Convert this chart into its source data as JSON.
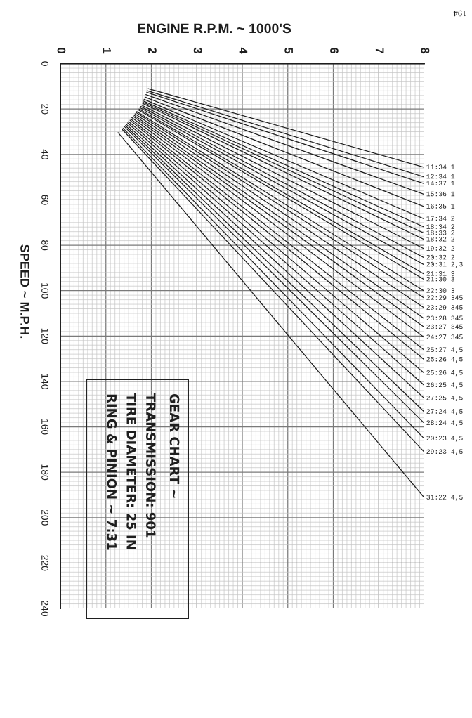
{
  "chart_data": {
    "type": "line",
    "title": "GEAR CHART ~",
    "subtitle": "TRANSMISSION: 901\nTIRE DIAMETER: 25 IN\nRING & PINION ~ 7:31",
    "xlabel": "ENGINE R.P.M. ~ 1000'S",
    "ylabel": "SPEED ~ M.P.H.",
    "annotations": [
      "194"
    ],
    "xlim": [
      0,
      8
    ],
    "ylim": [
      240,
      0
    ],
    "xticks": [
      0,
      1,
      2,
      3,
      4,
      5,
      6,
      7,
      8
    ],
    "yticks": [
      0,
      20,
      40,
      60,
      80,
      100,
      120,
      140,
      160,
      180,
      200,
      220,
      240
    ],
    "grid": true,
    "series": [
      {
        "name": "11:34 1",
        "color": "#1e1e1e",
        "x": [
          1.93,
          8
        ],
        "values": [
          11.0,
          45.7
        ]
      },
      {
        "name": "12:34 1",
        "color": "#1e1e1e",
        "x": [
          1.91,
          8
        ],
        "values": [
          11.9,
          49.9
        ]
      },
      {
        "name": "14:37 1",
        "color": "#1e1e1e",
        "x": [
          1.9,
          8
        ],
        "values": [
          12.6,
          52.9
        ]
      },
      {
        "name": "15:36 1",
        "color": "#1e1e1e",
        "x": [
          1.88,
          8
        ],
        "values": [
          13.6,
          57.6
        ]
      },
      {
        "name": "16:35 1",
        "color": "#1e1e1e",
        "x": [
          1.86,
          8
        ],
        "values": [
          14.7,
          63.0
        ]
      },
      {
        "name": "17:34 2",
        "color": "#1e1e1e",
        "x": [
          1.84,
          8
        ],
        "values": [
          15.7,
          68.4
        ]
      },
      {
        "name": "18:34 2",
        "color": "#1e1e1e",
        "x": [
          1.83,
          8
        ],
        "values": [
          16.5,
          72.0
        ]
      },
      {
        "name": "18:33 2",
        "color": "#1e1e1e",
        "x": [
          1.82,
          8
        ],
        "values": [
          17.0,
          74.7
        ]
      },
      {
        "name": "18:32 2",
        "color": "#1e1e1e",
        "x": [
          1.81,
          8
        ],
        "values": [
          17.5,
          77.5
        ]
      },
      {
        "name": "19:32 2",
        "color": "#1e1e1e",
        "x": [
          1.79,
          8
        ],
        "values": [
          18.3,
          81.6
        ]
      },
      {
        "name": "20:32 2",
        "color": "#1e1e1e",
        "x": [
          1.77,
          8
        ],
        "values": [
          18.9,
          85.5
        ]
      },
      {
        "name": "20:31 2,3",
        "color": "#1e1e1e",
        "x": [
          1.75,
          8
        ],
        "values": [
          19.4,
          88.6
        ]
      },
      {
        "name": "21:31 3",
        "color": "#1e1e1e",
        "x": [
          1.73,
          8
        ],
        "values": [
          20.0,
          92.7
        ]
      },
      {
        "name": "21:30 3",
        "color": "#1e1e1e",
        "x": [
          1.71,
          8
        ],
        "values": [
          20.3,
          95.1
        ]
      },
      {
        "name": "22:30 3",
        "color": "#1e1e1e",
        "x": [
          1.68,
          8
        ],
        "values": [
          21.1,
          100.2
        ]
      },
      {
        "name": "22:29 345",
        "color": "#1e1e1e",
        "x": [
          1.66,
          8
        ],
        "values": [
          21.5,
          103.3
        ]
      },
      {
        "name": "23:29 345",
        "color": "#1e1e1e",
        "x": [
          1.64,
          8
        ],
        "values": [
          22.1,
          107.6
        ]
      },
      {
        "name": "23:28 345",
        "color": "#1e1e1e",
        "x": [
          1.62,
          8
        ],
        "values": [
          22.7,
          112.3
        ]
      },
      {
        "name": "23:27 345",
        "color": "#1e1e1e",
        "x": [
          1.6,
          8
        ],
        "values": [
          23.2,
          116.1
        ]
      },
      {
        "name": "24:27 345",
        "color": "#1e1e1e",
        "x": [
          1.57,
          8
        ],
        "values": [
          23.7,
          120.6
        ]
      },
      {
        "name": "25:27 4,5",
        "color": "#1e1e1e",
        "x": [
          1.55,
          8
        ],
        "values": [
          24.4,
          126.2
        ]
      },
      {
        "name": "25:26 4,5",
        "color": "#1e1e1e",
        "x": [
          1.53,
          8
        ],
        "values": [
          24.9,
          130.4
        ]
      },
      {
        "name": "25:26 4,5",
        "color": "#1e1e1e",
        "x": [
          1.5,
          8
        ],
        "values": [
          25.5,
          136.3
        ]
      },
      {
        "name": "26:25 4,5",
        "color": "#1e1e1e",
        "x": [
          1.48,
          8
        ],
        "values": [
          26.1,
          141.7
        ]
      },
      {
        "name": "27:25 4,5",
        "color": "#1e1e1e",
        "x": [
          1.45,
          8
        ],
        "values": [
          26.7,
          147.4
        ]
      },
      {
        "name": "27:24 4,5",
        "color": "#1e1e1e",
        "x": [
          1.43,
          8
        ],
        "values": [
          27.3,
          153.4
        ]
      },
      {
        "name": "28:24 4,5",
        "color": "#1e1e1e",
        "x": [
          1.41,
          8
        ],
        "values": [
          27.8,
          158.4
        ]
      },
      {
        "name": "20:23 4,5",
        "color": "#1e1e1e",
        "x": [
          1.38,
          8
        ],
        "values": [
          28.5,
          165.2
        ]
      },
      {
        "name": "29:23 4,5",
        "color": "#1e1e1e",
        "x": [
          1.36,
          8
        ],
        "values": [
          29.0,
          171.1
        ]
      },
      {
        "name": "31:22 4,5",
        "color": "#1e1e1e",
        "x": [
          1.27,
          8
        ],
        "values": [
          30.4,
          191.2
        ]
      }
    ]
  }
}
